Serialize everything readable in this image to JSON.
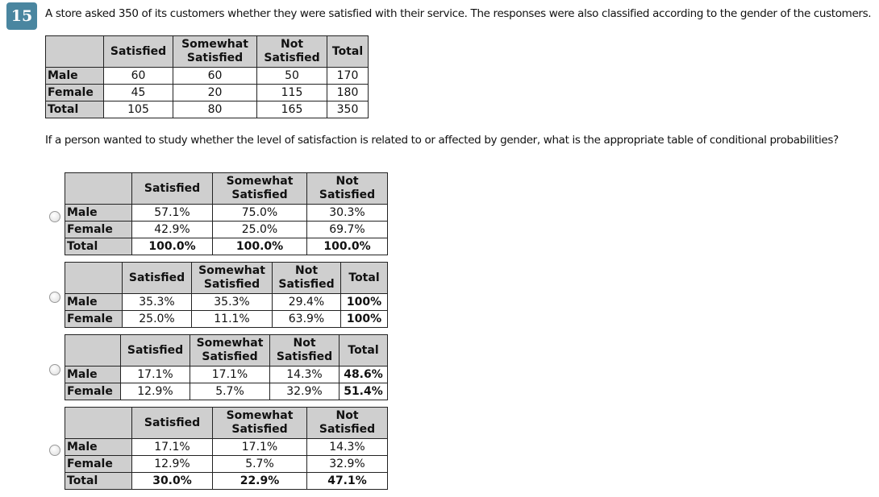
{
  "question": {
    "number": "15",
    "text": "A store asked 350 of its customers whether they were satisfied with their service. The responses were also classified according to the gender of the customers.",
    "prompt": "If a person wanted to study whether the level of satisfaction is related to or affected by gender, what is the appropriate table of conditional probabilities?"
  },
  "data_table": {
    "headers": [
      "",
      "Satisfied",
      "Somewhat Satisfied",
      "Not Satisfied",
      "Total"
    ],
    "rows": [
      [
        "Male",
        "60",
        "60",
        "50",
        "170"
      ],
      [
        "Female",
        "45",
        "20",
        "115",
        "180"
      ],
      [
        "Total",
        "105",
        "80",
        "165",
        "350"
      ]
    ]
  },
  "options": [
    {
      "headers": [
        "",
        "Satisfied",
        "Somewhat Satisfied",
        "Not Satisfied"
      ],
      "rows": [
        [
          "Male",
          "57.1%",
          "75.0%",
          "30.3%"
        ],
        [
          "Female",
          "42.9%",
          "25.0%",
          "69.7%"
        ],
        [
          "Total",
          "100.0%",
          "100.0%",
          "100.0%"
        ]
      ]
    },
    {
      "headers": [
        "",
        "Satisfied",
        "Somewhat Satisfied",
        "Not Satisfied",
        "Total"
      ],
      "rows": [
        [
          "Male",
          "35.3%",
          "35.3%",
          "29.4%",
          "100%"
        ],
        [
          "Female",
          "25.0%",
          "11.1%",
          "63.9%",
          "100%"
        ]
      ]
    },
    {
      "headers": [
        "",
        "Satisfied",
        "Somewhat Satisfied",
        "Not Satisfied",
        "Total"
      ],
      "rows": [
        [
          "Male",
          "17.1%",
          "17.1%",
          "14.3%",
          "48.6%"
        ],
        [
          "Female",
          "12.9%",
          "5.7%",
          "32.9%",
          "51.4%"
        ]
      ]
    },
    {
      "headers": [
        "",
        "Satisfied",
        "Somewhat Satisfied",
        "Not Satisfied"
      ],
      "rows": [
        [
          "Male",
          "17.1%",
          "17.1%",
          "14.3%"
        ],
        [
          "Female",
          "12.9%",
          "5.7%",
          "32.9%"
        ],
        [
          "Total",
          "30.0%",
          "22.9%",
          "47.1%"
        ]
      ]
    }
  ]
}
